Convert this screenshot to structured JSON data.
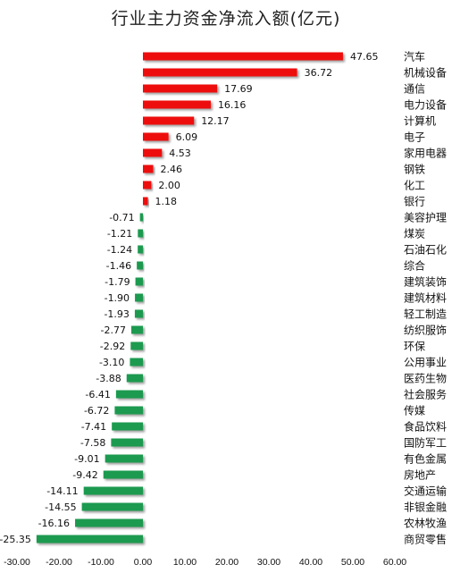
{
  "chart_data": {
    "type": "bar",
    "orientation": "horizontal",
    "title": "行业主力资金净流入额(亿元)",
    "xlabel": "",
    "ylabel": "",
    "xlim": [
      -30,
      60
    ],
    "ticks": [
      "-30.00",
      "-20.00",
      "-10.00",
      "0.00",
      "10.00",
      "20.00",
      "30.00",
      "40.00",
      "50.00",
      "60.00"
    ],
    "grid": false,
    "legend": "none",
    "colors": {
      "positive": "#ee1111",
      "negative": "#1a9a50"
    },
    "categories": [
      "汽车",
      "机械设备",
      "通信",
      "电力设备",
      "计算机",
      "电子",
      "家用电器",
      "钢铁",
      "化工",
      "银行",
      "美容护理",
      "煤炭",
      "石油石化",
      "综合",
      "建筑装饰",
      "建筑材料",
      "轻工制造",
      "纺织服饰",
      "环保",
      "公用事业",
      "医药生物",
      "社会服务",
      "传媒",
      "食品饮料",
      "国防军工",
      "有色金属",
      "房地产",
      "交通运输",
      "非银金融",
      "农林牧渔",
      "商贸零售"
    ],
    "values": [
      47.65,
      36.72,
      17.69,
      16.16,
      12.17,
      6.09,
      4.53,
      2.46,
      2.0,
      1.18,
      -0.71,
      -1.21,
      -1.24,
      -1.46,
      -1.79,
      -1.9,
      -1.93,
      -2.77,
      -2.92,
      -3.1,
      -3.88,
      -6.41,
      -6.72,
      -7.41,
      -7.58,
      -9.01,
      -9.42,
      -14.11,
      -14.55,
      -16.16,
      -25.35
    ],
    "value_labels": [
      "47.65",
      "36.72",
      "17.69",
      "16.16",
      "12.17",
      "6.09",
      "4.53",
      "2.46",
      "2.00",
      "1.18",
      "-0.71",
      "-1.21",
      "-1.24",
      "-1.46",
      "-1.79",
      "-1.90",
      "-1.93",
      "-2.77",
      "-2.92",
      "-3.10",
      "-3.88",
      "-6.41",
      "-6.72",
      "-7.41",
      "-7.58",
      "-9.01",
      "-9.42",
      "-14.11",
      "-14.55",
      "-16.16",
      "-25.35"
    ]
  }
}
